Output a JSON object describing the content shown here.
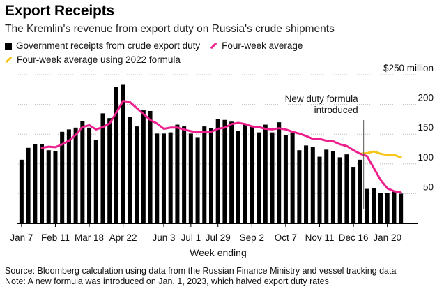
{
  "header": {
    "title": "Export Receipts",
    "subtitle": "The Kremlin's revenue from export duty on Russia's crude shipments"
  },
  "legend": {
    "items": [
      {
        "label": "Government receipts from crude export duty",
        "color": "#000000",
        "kind": "square"
      },
      {
        "label": "Four-week average",
        "color": "#ec1f8c",
        "kind": "line"
      },
      {
        "label": "Four-week average using 2022 formula",
        "color": "#f5c518",
        "kind": "line"
      }
    ]
  },
  "footer": {
    "source": "Source: Bloomberg calculation using data from the Russian Finance Ministry and vessel tracking data",
    "note": "Note: A new formula was introduced on Jan. 1, 2023, which halved export duty rates"
  },
  "chart_data": {
    "type": "bar",
    "xlabel": "Week ending",
    "ylabel": "",
    "ylim": [
      0,
      250
    ],
    "y_ticks": [
      {
        "value": 50,
        "label": "50"
      },
      {
        "value": 100,
        "label": "100"
      },
      {
        "value": 150,
        "label": "150"
      },
      {
        "value": 200,
        "label": "200"
      },
      {
        "value": 250,
        "label": "$250 million"
      }
    ],
    "x_tick_labels": [
      {
        "index": 0,
        "label": "Jan 7"
      },
      {
        "index": 5,
        "label": "Feb 11"
      },
      {
        "index": 10,
        "label": "Mar 18"
      },
      {
        "index": 15,
        "label": "Apr 22"
      },
      {
        "index": 21,
        "label": "Jun 3"
      },
      {
        "index": 25,
        "label": "Jul 1"
      },
      {
        "index": 29,
        "label": "Jul 29"
      },
      {
        "index": 34,
        "label": "Sep 2"
      },
      {
        "index": 39,
        "label": "Oct 7"
      },
      {
        "index": 44,
        "label": "Nov 11"
      },
      {
        "index": 49,
        "label": "Dec 16"
      },
      {
        "index": 54,
        "label": "Jan 20"
      }
    ],
    "series": [
      {
        "name": "Government receipts from crude export duty",
        "color": "#000000",
        "values": [
          107,
          127,
          133,
          133,
          123,
          122,
          154,
          158,
          161,
          172,
          161,
          140,
          185,
          177,
          230,
          233,
          179,
          163,
          190,
          189,
          151,
          151,
          153,
          166,
          163,
          151,
          145,
          163,
          160,
          176,
          174,
          171,
          156,
          167,
          162,
          153,
          166,
          153,
          170,
          148,
          153,
          123,
          131,
          128,
          112,
          124,
          121,
          111,
          116,
          95,
          107,
          58,
          59,
          51,
          51,
          55,
          50
        ]
      },
      {
        "name": "Four-week average",
        "color": "#ec1f8c",
        "values": [
          null,
          null,
          null,
          127,
          129,
          128,
          133,
          139,
          149,
          162,
          165,
          158,
          162,
          168,
          186,
          206,
          204,
          194,
          184,
          174,
          168,
          159,
          161,
          161,
          158,
          155,
          153,
          154,
          154,
          159,
          161,
          167,
          169,
          167,
          163,
          162,
          159,
          158,
          160,
          158,
          154,
          151,
          147,
          142,
          142,
          139,
          138,
          133,
          130,
          123,
          117,
          113,
          93,
          73,
          59,
          54,
          52
        ]
      },
      {
        "name": "Four-week average using 2022 formula",
        "color": "#f5c518",
        "values": [
          null,
          null,
          null,
          null,
          null,
          null,
          null,
          null,
          null,
          null,
          null,
          null,
          null,
          null,
          null,
          null,
          null,
          null,
          null,
          null,
          null,
          null,
          null,
          null,
          null,
          null,
          null,
          null,
          null,
          null,
          null,
          null,
          null,
          null,
          null,
          null,
          null,
          null,
          null,
          null,
          null,
          null,
          null,
          null,
          null,
          null,
          null,
          null,
          null,
          null,
          117,
          118,
          121,
          117,
          115,
          115,
          111
        ]
      }
    ],
    "annotations": [
      {
        "text": "New duty formula",
        "index": 50.5
      },
      {
        "text": "introduced",
        "index": 50.5
      }
    ],
    "grid": "horizontal, dotted",
    "legend_position": "top"
  }
}
